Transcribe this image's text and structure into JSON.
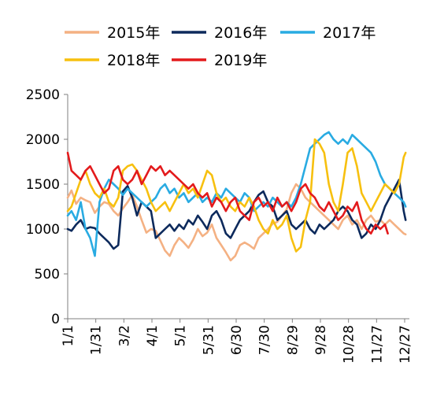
{
  "chart_data": {
    "type": "line",
    "title": "",
    "xlabel": "",
    "ylabel": "",
    "ylim": [
      0,
      2500
    ],
    "yticks": [
      0,
      500,
      1000,
      1500,
      2000,
      2500
    ],
    "xlim": [
      1,
      361
    ],
    "xticks": [
      {
        "day": 1,
        "label": "1/1"
      },
      {
        "day": 31,
        "label": "1/31"
      },
      {
        "day": 61,
        "label": "3/2"
      },
      {
        "day": 91,
        "label": "4/1"
      },
      {
        "day": 121,
        "label": "5/1"
      },
      {
        "day": 151,
        "label": "5/31"
      },
      {
        "day": 181,
        "label": "6/30"
      },
      {
        "day": 211,
        "label": "7/30"
      },
      {
        "day": 241,
        "label": "8/29"
      },
      {
        "day": 271,
        "label": "9/28"
      },
      {
        "day": 301,
        "label": "10/28"
      },
      {
        "day": 331,
        "label": "11/27"
      },
      {
        "day": 361,
        "label": "12/27"
      }
    ],
    "grid": false,
    "legend_position": "top",
    "series": [
      {
        "name": "2015年",
        "color": "#f4b183",
        "x": [
          1,
          5,
          10,
          15,
          20,
          25,
          30,
          35,
          40,
          45,
          50,
          55,
          60,
          65,
          70,
          75,
          80,
          85,
          90,
          95,
          100,
          105,
          110,
          115,
          120,
          125,
          130,
          135,
          140,
          145,
          150,
          155,
          160,
          165,
          170,
          175,
          180,
          185,
          190,
          195,
          200,
          205,
          210,
          215,
          220,
          225,
          230,
          235,
          240,
          245,
          250,
          255,
          260,
          265,
          270,
          275,
          280,
          285,
          290,
          295,
          300,
          305,
          310,
          315,
          320,
          325,
          330,
          335,
          340,
          345,
          350,
          355,
          360,
          362
        ],
        "y": [
          1350,
          1430,
          1280,
          1350,
          1320,
          1300,
          1180,
          1250,
          1300,
          1280,
          1200,
          1150,
          1230,
          1300,
          1380,
          1250,
          1100,
          960,
          1000,
          980,
          870,
          760,
          700,
          820,
          900,
          850,
          790,
          880,
          1000,
          920,
          960,
          1050,
          900,
          820,
          740,
          650,
          700,
          820,
          850,
          820,
          780,
          900,
          950,
          1000,
          1060,
          1080,
          1150,
          1220,
          1400,
          1500,
          1450,
          1350,
          1300,
          1250,
          1200,
          1150,
          1100,
          1050,
          1000,
          1100,
          1150,
          1050,
          1100,
          1000,
          1100,
          1150,
          1080,
          1100,
          1050,
          1100,
          1050,
          1000,
          950,
          940
        ]
      },
      {
        "name": "2016年",
        "color": "#0d2a5c",
        "x": [
          1,
          5,
          10,
          15,
          20,
          25,
          30,
          35,
          40,
          45,
          50,
          55,
          60,
          65,
          70,
          75,
          80,
          85,
          90,
          95,
          100,
          105,
          110,
          115,
          120,
          125,
          130,
          135,
          140,
          145,
          150,
          155,
          160,
          165,
          170,
          175,
          180,
          185,
          190,
          195,
          200,
          205,
          210,
          215,
          220,
          225,
          230,
          235,
          240,
          245,
          250,
          255,
          260,
          265,
          270,
          275,
          280,
          285,
          290,
          295,
          300,
          305,
          310,
          315,
          320,
          325,
          330,
          335,
          340,
          345,
          350,
          355,
          360,
          362
        ],
        "y": [
          1000,
          980,
          1050,
          1100,
          1000,
          1020,
          1010,
          950,
          900,
          850,
          780,
          820,
          1420,
          1480,
          1350,
          1150,
          1300,
          1250,
          1200,
          900,
          950,
          1000,
          1050,
          980,
          1050,
          1000,
          1100,
          1050,
          1150,
          1080,
          1000,
          1150,
          1200,
          1100,
          950,
          900,
          1000,
          1100,
          1150,
          1200,
          1300,
          1380,
          1420,
          1300,
          1250,
          1100,
          1150,
          1200,
          1050,
          1000,
          1050,
          1100,
          1000,
          950,
          1050,
          1000,
          1050,
          1100,
          1200,
          1250,
          1200,
          1100,
          1050,
          900,
          950,
          1050,
          1000,
          1100,
          1250,
          1350,
          1450,
          1550,
          1200,
          1100
        ]
      },
      {
        "name": "2017年",
        "color": "#29abe2",
        "x": [
          1,
          5,
          10,
          15,
          20,
          25,
          30,
          35,
          40,
          45,
          50,
          55,
          60,
          65,
          70,
          75,
          80,
          85,
          90,
          95,
          100,
          105,
          110,
          115,
          120,
          125,
          130,
          135,
          140,
          145,
          150,
          155,
          160,
          165,
          170,
          175,
          180,
          185,
          190,
          195,
          200,
          205,
          210,
          215,
          220,
          225,
          230,
          235,
          240,
          245,
          250,
          255,
          260,
          265,
          270,
          275,
          280,
          285,
          290,
          295,
          300,
          305,
          310,
          315,
          320,
          325,
          330,
          335,
          340,
          345,
          350,
          355,
          360,
          362
        ],
        "y": [
          1150,
          1200,
          1100,
          1300,
          1000,
          900,
          700,
          1300,
          1450,
          1550,
          1500,
          1450,
          1380,
          1450,
          1400,
          1350,
          1300,
          1250,
          1300,
          1350,
          1450,
          1500,
          1400,
          1450,
          1350,
          1400,
          1300,
          1350,
          1400,
          1300,
          1350,
          1300,
          1400,
          1350,
          1450,
          1400,
          1350,
          1300,
          1400,
          1350,
          1200,
          1250,
          1300,
          1250,
          1350,
          1300,
          1250,
          1300,
          1250,
          1350,
          1500,
          1700,
          1900,
          1950,
          2000,
          2050,
          2080,
          2000,
          1950,
          2000,
          1950,
          2050,
          2000,
          1950,
          1900,
          1850,
          1750,
          1600,
          1500,
          1450,
          1400,
          1350,
          1300,
          1250
        ]
      },
      {
        "name": "2018年",
        "color": "#f7c00f",
        "x": [
          1,
          5,
          10,
          15,
          20,
          25,
          30,
          35,
          40,
          45,
          50,
          55,
          60,
          65,
          70,
          75,
          80,
          85,
          90,
          95,
          100,
          105,
          110,
          115,
          120,
          125,
          130,
          135,
          140,
          145,
          150,
          155,
          160,
          165,
          170,
          175,
          180,
          185,
          190,
          195,
          200,
          205,
          210,
          215,
          220,
          225,
          230,
          235,
          240,
          245,
          250,
          255,
          260,
          265,
          270,
          275,
          280,
          285,
          290,
          295,
          300,
          305,
          310,
          315,
          320,
          325,
          330,
          335,
          340,
          345,
          350,
          355,
          360,
          362
        ],
        "y": [
          1200,
          1250,
          1400,
          1550,
          1650,
          1500,
          1400,
          1350,
          1450,
          1300,
          1250,
          1350,
          1650,
          1700,
          1720,
          1650,
          1550,
          1450,
          1300,
          1200,
          1250,
          1300,
          1200,
          1300,
          1400,
          1500,
          1400,
          1450,
          1350,
          1500,
          1650,
          1600,
          1400,
          1300,
          1350,
          1250,
          1200,
          1300,
          1250,
          1350,
          1250,
          1100,
          1000,
          950,
          1100,
          1000,
          1050,
          1150,
          900,
          750,
          800,
          1100,
          1300,
          2000,
          1950,
          1850,
          1500,
          1300,
          1200,
          1500,
          1850,
          1900,
          1700,
          1400,
          1300,
          1200,
          1300,
          1400,
          1500,
          1450,
          1400,
          1500,
          1800,
          1850
        ]
      },
      {
        "name": "2019年",
        "color": "#e31a1c",
        "x": [
          1,
          5,
          10,
          15,
          20,
          25,
          30,
          35,
          40,
          45,
          50,
          55,
          60,
          65,
          70,
          75,
          80,
          85,
          90,
          95,
          100,
          105,
          110,
          115,
          120,
          125,
          130,
          135,
          140,
          145,
          150,
          155,
          160,
          165,
          170,
          175,
          180,
          185,
          190,
          195,
          200,
          205,
          210,
          215,
          220,
          225,
          230,
          235,
          240,
          245,
          250,
          255,
          260,
          265,
          270,
          275,
          280,
          285,
          290,
          295,
          300,
          305,
          310,
          315,
          320,
          325,
          330,
          335,
          340,
          343
        ],
        "y": [
          1850,
          1650,
          1600,
          1550,
          1650,
          1700,
          1600,
          1500,
          1400,
          1450,
          1650,
          1700,
          1550,
          1500,
          1550,
          1650,
          1500,
          1600,
          1700,
          1650,
          1700,
          1600,
          1650,
          1600,
          1550,
          1500,
          1450,
          1500,
          1400,
          1350,
          1400,
          1250,
          1350,
          1300,
          1200,
          1300,
          1350,
          1200,
          1150,
          1100,
          1300,
          1350,
          1250,
          1300,
          1200,
          1350,
          1250,
          1300,
          1200,
          1300,
          1450,
          1500,
          1400,
          1350,
          1250,
          1200,
          1300,
          1200,
          1100,
          1150,
          1250,
          1200,
          1300,
          1100,
          1000,
          950,
          1050,
          1000,
          1050,
          950
        ]
      }
    ]
  }
}
